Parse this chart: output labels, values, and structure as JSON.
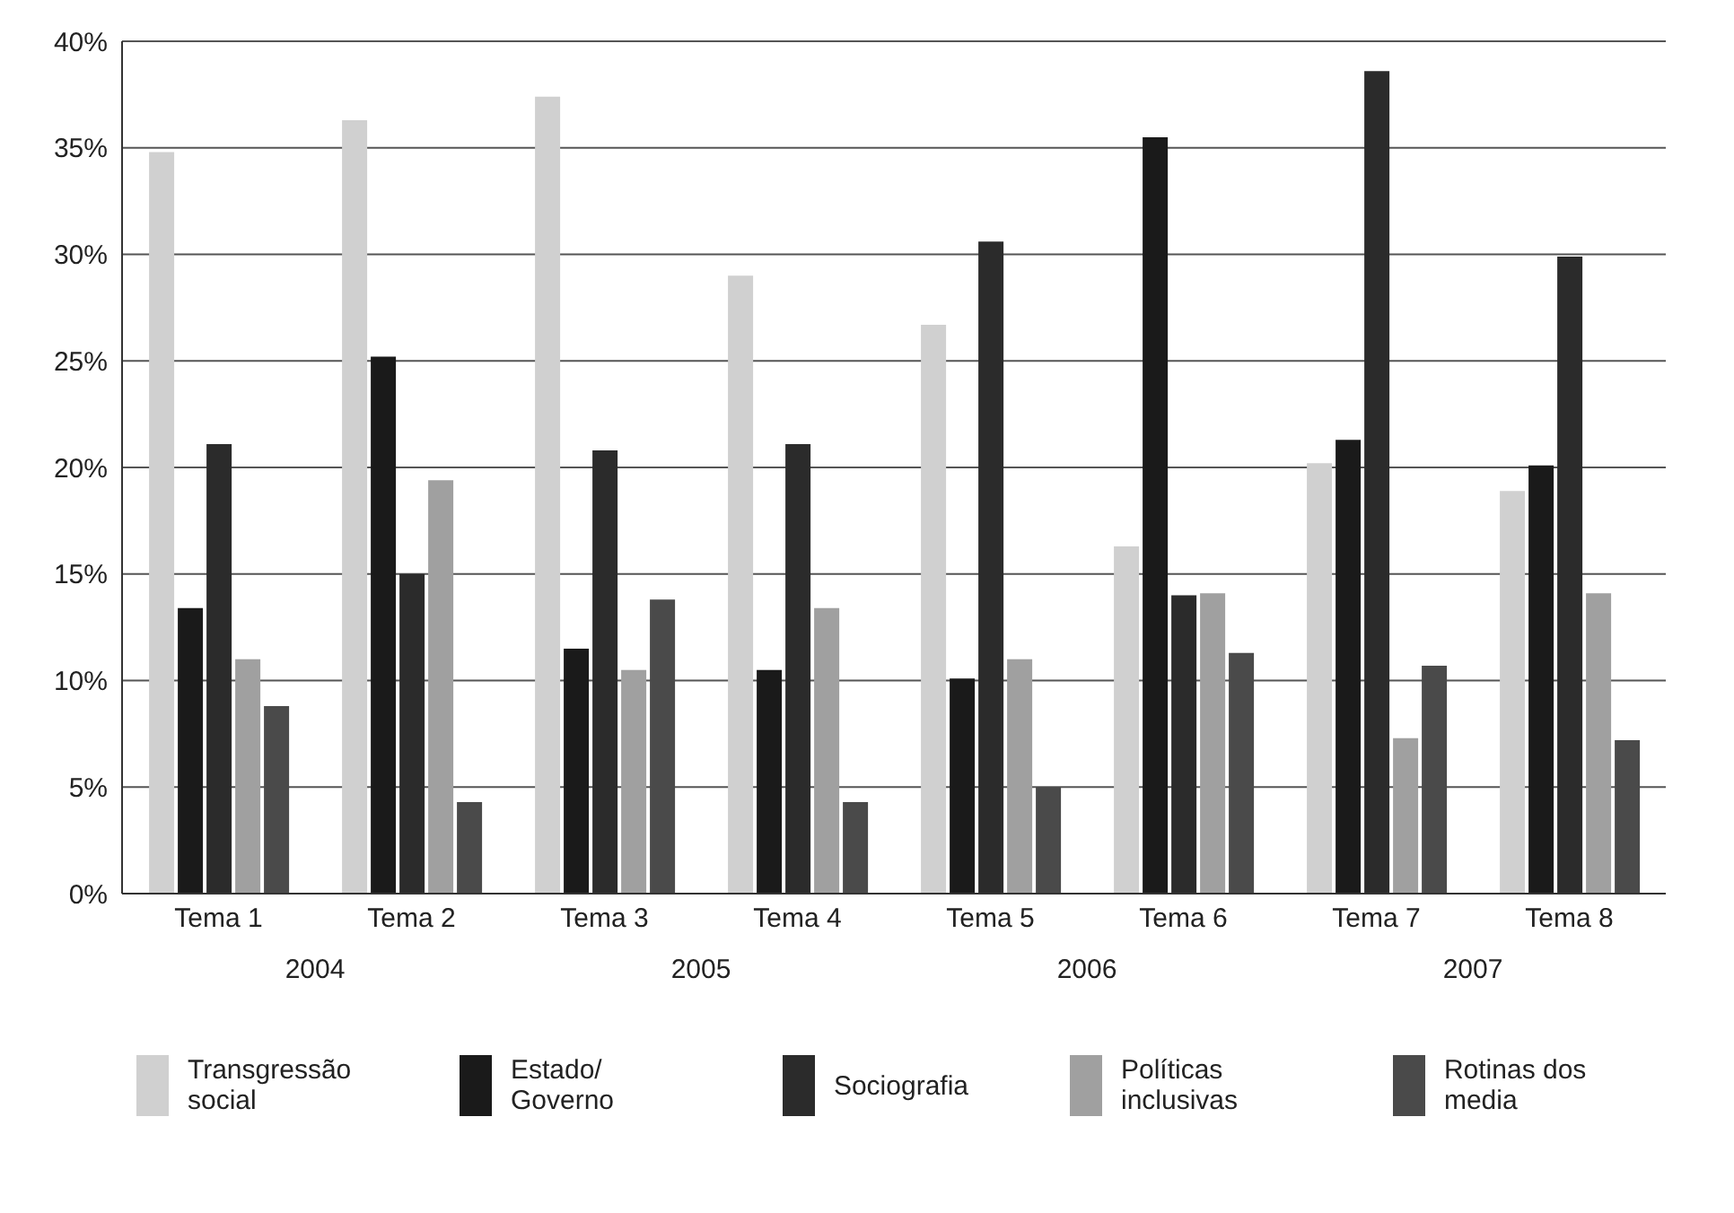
{
  "chart_data": {
    "type": "bar",
    "categories": [
      "Tema 1",
      "Tema 2",
      "Tema 3",
      "Tema 4",
      "Tema 5",
      "Tema 6",
      "Tema 7",
      "Tema 8"
    ],
    "series": [
      {
        "name": "Transgressão social",
        "color": "#d0d0d0",
        "values": [
          34.8,
          36.3,
          37.4,
          29.0,
          26.7,
          16.3,
          20.2,
          18.9
        ]
      },
      {
        "name": "Estado/ Governo",
        "color": "#1a1a1a",
        "values": [
          13.4,
          25.2,
          11.5,
          10.5,
          10.1,
          35.5,
          21.3,
          20.1
        ]
      },
      {
        "name": "Sociografia",
        "color": "#2b2b2b",
        "values": [
          21.1,
          15.0,
          20.8,
          21.1,
          30.6,
          14.0,
          38.6,
          29.9
        ]
      },
      {
        "name": "Políticas inclusivas",
        "color": "#a0a0a0",
        "values": [
          11.0,
          19.4,
          10.5,
          13.4,
          11.0,
          14.1,
          7.3,
          14.1
        ]
      },
      {
        "name": "Rotinas dos media",
        "color": "#4a4a4a",
        "values": [
          8.8,
          4.3,
          13.8,
          4.3,
          5.0,
          11.3,
          10.7,
          7.2
        ]
      }
    ],
    "annotations": [
      "2004",
      "2005",
      "2006",
      "2007"
    ],
    "ylim": [
      0,
      40
    ],
    "yticks": [
      {
        "value": 0,
        "label": "0%"
      },
      {
        "value": 5,
        "label": "5%"
      },
      {
        "value": 10,
        "label": "10%"
      },
      {
        "value": 15,
        "label": "15%"
      },
      {
        "value": 20,
        "label": "20%"
      },
      {
        "value": 25,
        "label": "25%"
      },
      {
        "value": 30,
        "label": "30%"
      },
      {
        "value": 35,
        "label": "35%"
      },
      {
        "value": 40,
        "label": "40%"
      }
    ],
    "grid": "y",
    "legend": "bottom"
  }
}
